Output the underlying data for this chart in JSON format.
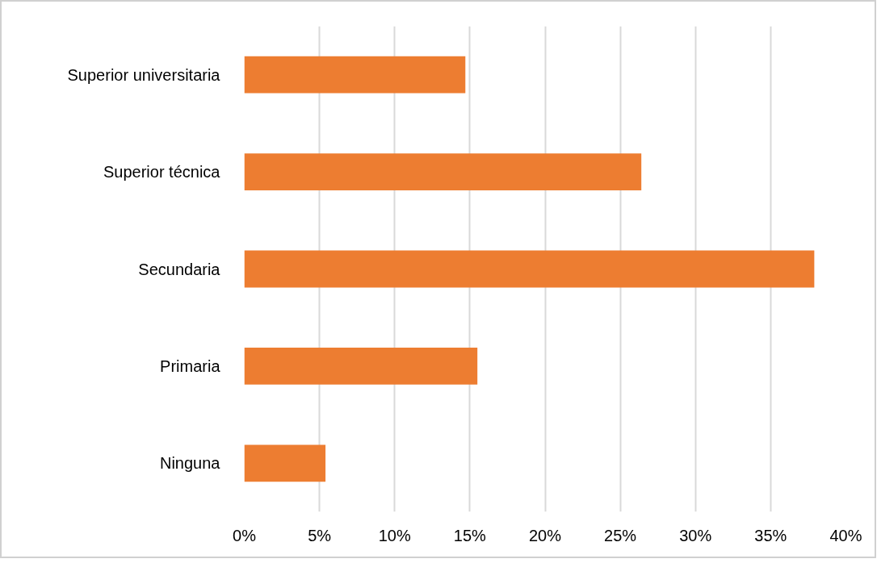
{
  "chart_data": {
    "type": "bar",
    "orientation": "horizontal",
    "categories": [
      "Superior universitaria",
      "Superior técnica",
      "Secundaria",
      "Primaria",
      "Ninguna"
    ],
    "values": [
      14.7,
      26.4,
      37.9,
      15.5,
      5.4
    ],
    "color": "#ed7d31",
    "xlim": [
      0,
      40
    ],
    "xticks": [
      {
        "value": 0,
        "label": "0%"
      },
      {
        "value": 5,
        "label": "5%"
      },
      {
        "value": 10,
        "label": "10%"
      },
      {
        "value": 15,
        "label": "15%"
      },
      {
        "value": 20,
        "label": "20%"
      },
      {
        "value": 25,
        "label": "25%"
      },
      {
        "value": 30,
        "label": "30%"
      },
      {
        "value": 35,
        "label": "35%"
      },
      {
        "value": 40,
        "label": "40%"
      }
    ],
    "grid": "x"
  }
}
